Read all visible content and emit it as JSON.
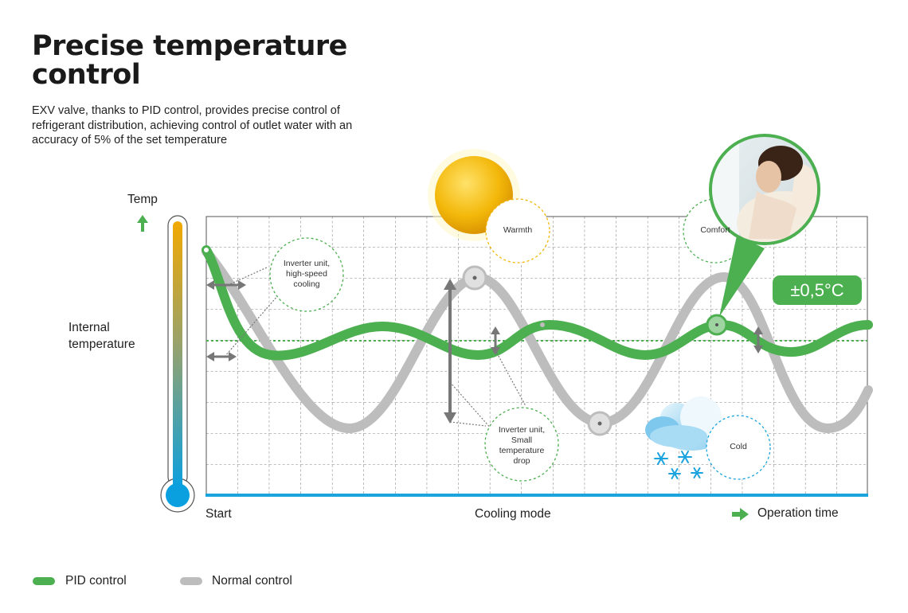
{
  "title": "Precise temperature control",
  "description": "EXV valve, thanks to PID control, provides precise control of refrigerant distribution, achieving control of outlet water with an accuracy of 5% of the set temperature",
  "axis": {
    "y_label": "Temp",
    "y_side_label": "Internal temperature",
    "x_start": "Start",
    "x_middle": "Cooling mode",
    "x_end": "Operation time"
  },
  "callouts": {
    "inverter_high_speed": "Inverter unit, high-speed cooling",
    "inverter_small_drop": "Inverter unit, Small temperature drop",
    "warmth": "Warmth",
    "comfort": "Comfort",
    "cold": "Cold"
  },
  "badge": "±0,5°C",
  "legend": [
    {
      "label": "PID control",
      "color": "#4caf50"
    },
    {
      "label": "Normal control",
      "color": "#bdbdbd"
    }
  ],
  "colors": {
    "pid": "#4caf50",
    "normal": "#bdbdbd",
    "accent_blue": "#1aa3dc",
    "sun": "#f2b705"
  },
  "icons": [
    "up-arrow-icon",
    "thermometer-icon",
    "sun-icon",
    "cloud-icon",
    "snowflake-icon",
    "right-arrow-icon",
    "person-comfort-icon"
  ]
}
